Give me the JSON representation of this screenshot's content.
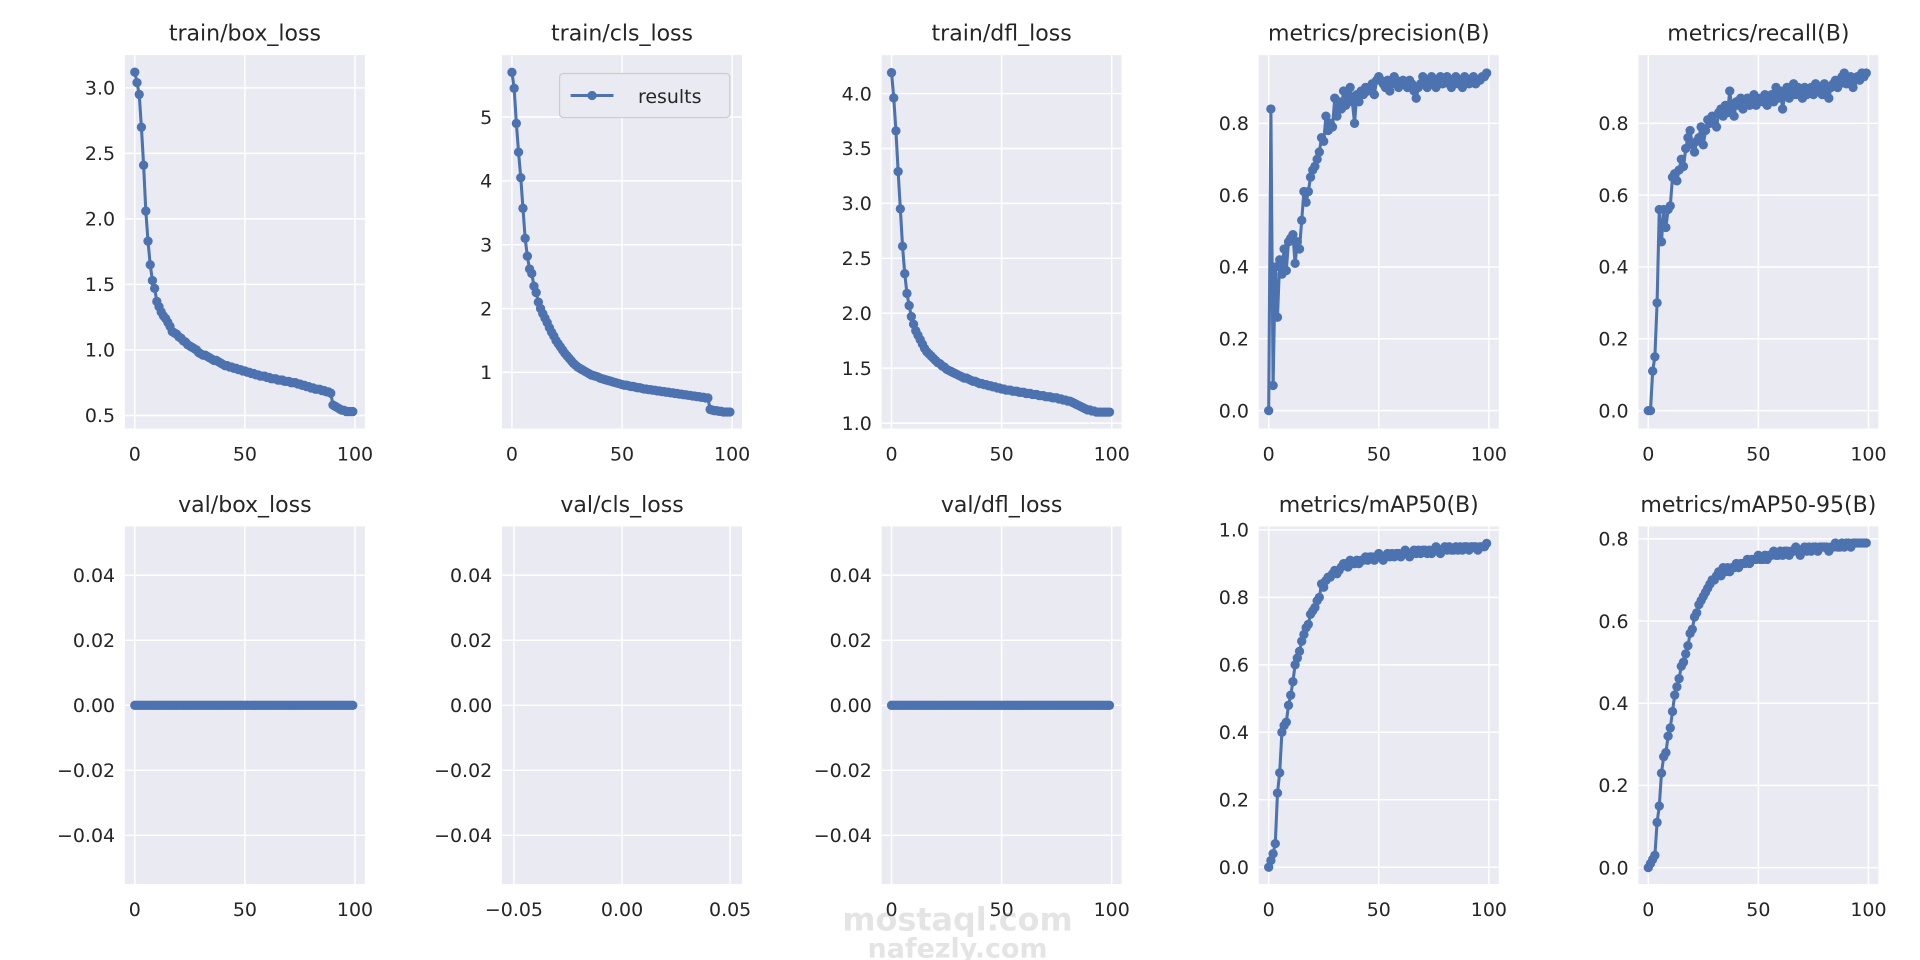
{
  "legend": {
    "label": "results"
  },
  "watermark": {
    "lines": [
      "mostaql.com",
      "nafezly.com"
    ]
  },
  "colors": {
    "series": "#4c72b0",
    "axes_bg": "#eaeaf2",
    "grid": "#ffffff",
    "text": "#262626"
  },
  "chart_data": [
    {
      "type": "line",
      "title": "train/box_loss",
      "grid": true,
      "xlim": [
        -4.5,
        104.5
      ],
      "ylim": [
        0.4,
        3.25
      ],
      "xticks": [
        0,
        50,
        100
      ],
      "xtick_labels": [
        "0",
        "50",
        "100"
      ],
      "yticks": [
        0.5,
        1.0,
        1.5,
        2.0,
        2.5,
        3.0
      ],
      "ytick_labels": [
        "0.5",
        "1.0",
        "1.5",
        "2.0",
        "2.5",
        "3.0"
      ],
      "values": [
        3.12,
        3.04,
        2.95,
        2.7,
        2.41,
        2.06,
        1.83,
        1.65,
        1.53,
        1.47,
        1.37,
        1.33,
        1.29,
        1.26,
        1.24,
        1.21,
        1.18,
        1.14,
        1.13,
        1.12,
        1.1,
        1.09,
        1.07,
        1.06,
        1.04,
        1.03,
        1.02,
        1.01,
        1.0,
        0.98,
        0.97,
        0.96,
        0.96,
        0.95,
        0.94,
        0.93,
        0.92,
        0.92,
        0.91,
        0.9,
        0.89,
        0.88,
        0.88,
        0.87,
        0.87,
        0.86,
        0.86,
        0.85,
        0.85,
        0.84,
        0.84,
        0.83,
        0.83,
        0.82,
        0.82,
        0.81,
        0.81,
        0.8,
        0.8,
        0.8,
        0.79,
        0.79,
        0.78,
        0.78,
        0.78,
        0.77,
        0.77,
        0.77,
        0.76,
        0.76,
        0.76,
        0.75,
        0.75,
        0.75,
        0.74,
        0.74,
        0.73,
        0.73,
        0.72,
        0.72,
        0.71,
        0.71,
        0.7,
        0.7,
        0.7,
        0.69,
        0.69,
        0.68,
        0.68,
        0.67,
        0.58,
        0.57,
        0.56,
        0.55,
        0.54,
        0.54,
        0.53,
        0.53,
        0.53,
        0.53
      ]
    },
    {
      "type": "line",
      "title": "train/cls_loss",
      "grid": true,
      "legend": "top-right",
      "xlim": [
        -4.5,
        104.5
      ],
      "ylim": [
        0.12,
        5.97
      ],
      "xticks": [
        0,
        50,
        100
      ],
      "xtick_labels": [
        "0",
        "50",
        "100"
      ],
      "yticks": [
        1,
        2,
        3,
        4,
        5
      ],
      "ytick_labels": [
        "1",
        "2",
        "3",
        "4",
        "5"
      ],
      "values": [
        5.7,
        5.45,
        4.9,
        4.45,
        4.05,
        3.57,
        3.1,
        2.82,
        2.62,
        2.55,
        2.35,
        2.25,
        2.1,
        2.0,
        1.92,
        1.85,
        1.78,
        1.7,
        1.63,
        1.57,
        1.5,
        1.45,
        1.4,
        1.35,
        1.3,
        1.26,
        1.22,
        1.18,
        1.14,
        1.11,
        1.08,
        1.06,
        1.04,
        1.02,
        1.0,
        0.98,
        0.96,
        0.95,
        0.94,
        0.93,
        0.91,
        0.9,
        0.89,
        0.88,
        0.87,
        0.86,
        0.85,
        0.84,
        0.83,
        0.82,
        0.81,
        0.8,
        0.8,
        0.79,
        0.78,
        0.78,
        0.77,
        0.76,
        0.76,
        0.75,
        0.74,
        0.74,
        0.73,
        0.73,
        0.72,
        0.72,
        0.71,
        0.71,
        0.7,
        0.7,
        0.69,
        0.69,
        0.68,
        0.68,
        0.67,
        0.67,
        0.66,
        0.66,
        0.65,
        0.65,
        0.64,
        0.64,
        0.63,
        0.63,
        0.62,
        0.62,
        0.61,
        0.61,
        0.6,
        0.6,
        0.42,
        0.41,
        0.4,
        0.4,
        0.39,
        0.39,
        0.38,
        0.38,
        0.38,
        0.38
      ]
    },
    {
      "type": "line",
      "title": "train/dfl_loss",
      "grid": true,
      "xlim": [
        -4.5,
        104.5
      ],
      "ylim": [
        0.95,
        4.35
      ],
      "xticks": [
        0,
        50,
        100
      ],
      "xtick_labels": [
        "0",
        "50",
        "100"
      ],
      "yticks": [
        1.0,
        1.5,
        2.0,
        2.5,
        3.0,
        3.5,
        4.0
      ],
      "ytick_labels": [
        "1.0",
        "1.5",
        "2.0",
        "2.5",
        "3.0",
        "3.5",
        "4.0"
      ],
      "values": [
        4.19,
        3.96,
        3.66,
        3.29,
        2.95,
        2.61,
        2.36,
        2.18,
        2.07,
        1.97,
        1.9,
        1.84,
        1.8,
        1.76,
        1.72,
        1.68,
        1.65,
        1.63,
        1.61,
        1.59,
        1.57,
        1.55,
        1.54,
        1.52,
        1.51,
        1.49,
        1.48,
        1.47,
        1.46,
        1.45,
        1.44,
        1.43,
        1.42,
        1.41,
        1.41,
        1.4,
        1.39,
        1.38,
        1.38,
        1.37,
        1.36,
        1.36,
        1.35,
        1.35,
        1.34,
        1.34,
        1.33,
        1.33,
        1.32,
        1.32,
        1.31,
        1.31,
        1.3,
        1.3,
        1.3,
        1.29,
        1.29,
        1.29,
        1.28,
        1.28,
        1.28,
        1.27,
        1.27,
        1.27,
        1.26,
        1.26,
        1.26,
        1.25,
        1.25,
        1.25,
        1.24,
        1.24,
        1.24,
        1.23,
        1.23,
        1.23,
        1.22,
        1.22,
        1.21,
        1.21,
        1.2,
        1.2,
        1.19,
        1.18,
        1.17,
        1.16,
        1.15,
        1.14,
        1.13,
        1.12,
        1.12,
        1.11,
        1.11,
        1.1,
        1.1,
        1.1,
        1.1,
        1.1,
        1.1,
        1.1
      ]
    },
    {
      "type": "line",
      "title": "metrics/precision(B)",
      "grid": true,
      "xlim": [
        -4.5,
        104.5
      ],
      "ylim": [
        -0.05,
        0.99
      ],
      "xticks": [
        0,
        50,
        100
      ],
      "xtick_labels": [
        "0",
        "50",
        "100"
      ],
      "yticks": [
        0.0,
        0.2,
        0.4,
        0.6,
        0.8
      ],
      "ytick_labels": [
        "0.0",
        "0.2",
        "0.4",
        "0.6",
        "0.8"
      ],
      "values": [
        0.0,
        0.84,
        0.07,
        0.4,
        0.26,
        0.42,
        0.38,
        0.45,
        0.39,
        0.47,
        0.48,
        0.49,
        0.41,
        0.47,
        0.45,
        0.53,
        0.61,
        0.58,
        0.61,
        0.65,
        0.67,
        0.68,
        0.7,
        0.72,
        0.76,
        0.75,
        0.82,
        0.78,
        0.8,
        0.79,
        0.87,
        0.82,
        0.86,
        0.84,
        0.89,
        0.85,
        0.88,
        0.9,
        0.86,
        0.8,
        0.88,
        0.86,
        0.89,
        0.88,
        0.9,
        0.89,
        0.9,
        0.91,
        0.88,
        0.92,
        0.93,
        0.92,
        0.91,
        0.9,
        0.92,
        0.89,
        0.91,
        0.93,
        0.92,
        0.9,
        0.91,
        0.92,
        0.91,
        0.9,
        0.92,
        0.91,
        0.89,
        0.87,
        0.9,
        0.91,
        0.93,
        0.92,
        0.9,
        0.91,
        0.93,
        0.92,
        0.9,
        0.92,
        0.93,
        0.91,
        0.92,
        0.93,
        0.91,
        0.9,
        0.92,
        0.93,
        0.91,
        0.92,
        0.9,
        0.93,
        0.92,
        0.91,
        0.92,
        0.93,
        0.91,
        0.92,
        0.92,
        0.93,
        0.93,
        0.94
      ]
    },
    {
      "type": "line",
      "title": "metrics/recall(B)",
      "grid": true,
      "xlim": [
        -4.5,
        104.5
      ],
      "ylim": [
        -0.05,
        0.99
      ],
      "xticks": [
        0,
        50,
        100
      ],
      "xtick_labels": [
        "0",
        "50",
        "100"
      ],
      "yticks": [
        0.0,
        0.2,
        0.4,
        0.6,
        0.8
      ],
      "ytick_labels": [
        "0.0",
        "0.2",
        "0.4",
        "0.6",
        "0.8"
      ],
      "values": [
        0.0,
        0.0,
        0.11,
        0.15,
        0.3,
        0.56,
        0.47,
        0.56,
        0.51,
        0.56,
        0.57,
        0.65,
        0.66,
        0.64,
        0.67,
        0.7,
        0.68,
        0.73,
        0.76,
        0.78,
        0.74,
        0.72,
        0.75,
        0.76,
        0.79,
        0.74,
        0.78,
        0.81,
        0.8,
        0.82,
        0.8,
        0.79,
        0.83,
        0.84,
        0.82,
        0.85,
        0.83,
        0.89,
        0.84,
        0.82,
        0.86,
        0.85,
        0.87,
        0.84,
        0.86,
        0.87,
        0.85,
        0.86,
        0.88,
        0.85,
        0.86,
        0.87,
        0.86,
        0.88,
        0.85,
        0.87,
        0.88,
        0.86,
        0.9,
        0.87,
        0.89,
        0.84,
        0.88,
        0.9,
        0.87,
        0.89,
        0.91,
        0.88,
        0.9,
        0.89,
        0.87,
        0.9,
        0.88,
        0.89,
        0.9,
        0.88,
        0.91,
        0.89,
        0.9,
        0.88,
        0.91,
        0.89,
        0.87,
        0.9,
        0.91,
        0.92,
        0.9,
        0.91,
        0.93,
        0.94,
        0.91,
        0.92,
        0.93,
        0.9,
        0.92,
        0.93,
        0.92,
        0.94,
        0.93,
        0.94
      ]
    },
    {
      "type": "line",
      "title": "val/box_loss",
      "grid": true,
      "xlim": [
        -4.5,
        104.5
      ],
      "ylim": [
        -0.055,
        0.055
      ],
      "xticks": [
        0,
        50,
        100
      ],
      "xtick_labels": [
        "0",
        "50",
        "100"
      ],
      "yticks": [
        -0.04,
        -0.02,
        0.0,
        0.02,
        0.04
      ],
      "ytick_labels": [
        "−0.04",
        "−0.02",
        "0.00",
        "0.02",
        "0.04"
      ],
      "values": [
        0,
        0,
        0,
        0,
        0,
        0,
        0,
        0,
        0,
        0,
        0,
        0,
        0,
        0,
        0,
        0,
        0,
        0,
        0,
        0,
        0,
        0,
        0,
        0,
        0,
        0,
        0,
        0,
        0,
        0,
        0,
        0,
        0,
        0,
        0,
        0,
        0,
        0,
        0,
        0,
        0,
        0,
        0,
        0,
        0,
        0,
        0,
        0,
        0,
        0,
        0,
        0,
        0,
        0,
        0,
        0,
        0,
        0,
        0,
        0,
        0,
        0,
        0,
        0,
        0,
        0,
        0,
        0,
        0,
        0,
        0,
        0,
        0,
        0,
        0,
        0,
        0,
        0,
        0,
        0,
        0,
        0,
        0,
        0,
        0,
        0,
        0,
        0,
        0,
        0,
        0,
        0,
        0,
        0,
        0,
        0,
        0,
        0,
        0,
        0
      ]
    },
    {
      "type": "line",
      "title": "val/cls_loss",
      "grid": true,
      "xlim": [
        -0.0555,
        0.0555
      ],
      "ylim": [
        -0.055,
        0.055
      ],
      "xticks": [
        -0.05,
        0.0,
        0.05
      ],
      "xtick_labels": [
        "−0.05",
        "0.00",
        "0.05"
      ],
      "yticks": [
        -0.04,
        -0.02,
        0.0,
        0.02,
        0.04
      ],
      "ytick_labels": [
        "−0.04",
        "−0.02",
        "0.00",
        "0.02",
        "0.04"
      ],
      "values": []
    },
    {
      "type": "line",
      "title": "val/dfl_loss",
      "grid": true,
      "xlim": [
        -4.5,
        104.5
      ],
      "ylim": [
        -0.055,
        0.055
      ],
      "xticks": [
        0,
        50,
        100
      ],
      "xtick_labels": [
        "0",
        "50",
        "100"
      ],
      "yticks": [
        -0.04,
        -0.02,
        0.0,
        0.02,
        0.04
      ],
      "ytick_labels": [
        "−0.04",
        "−0.02",
        "0.00",
        "0.02",
        "0.04"
      ],
      "values": [
        0,
        0,
        0,
        0,
        0,
        0,
        0,
        0,
        0,
        0,
        0,
        0,
        0,
        0,
        0,
        0,
        0,
        0,
        0,
        0,
        0,
        0,
        0,
        0,
        0,
        0,
        0,
        0,
        0,
        0,
        0,
        0,
        0,
        0,
        0,
        0,
        0,
        0,
        0,
        0,
        0,
        0,
        0,
        0,
        0,
        0,
        0,
        0,
        0,
        0,
        0,
        0,
        0,
        0,
        0,
        0,
        0,
        0,
        0,
        0,
        0,
        0,
        0,
        0,
        0,
        0,
        0,
        0,
        0,
        0,
        0,
        0,
        0,
        0,
        0,
        0,
        0,
        0,
        0,
        0,
        0,
        0,
        0,
        0,
        0,
        0,
        0,
        0,
        0,
        0,
        0,
        0,
        0,
        0,
        0,
        0,
        0,
        0,
        0,
        0
      ]
    },
    {
      "type": "line",
      "title": "metrics/mAP50(B)",
      "grid": true,
      "xlim": [
        -4.5,
        104.5
      ],
      "ylim": [
        -0.05,
        1.01
      ],
      "xticks": [
        0,
        50,
        100
      ],
      "xtick_labels": [
        "0",
        "50",
        "100"
      ],
      "yticks": [
        0.0,
        0.2,
        0.4,
        0.6,
        0.8,
        1.0
      ],
      "ytick_labels": [
        "0.0",
        "0.2",
        "0.4",
        "0.6",
        "0.8",
        "1.0"
      ],
      "values": [
        0.0,
        0.02,
        0.04,
        0.07,
        0.22,
        0.28,
        0.4,
        0.42,
        0.43,
        0.48,
        0.51,
        0.55,
        0.6,
        0.62,
        0.64,
        0.67,
        0.69,
        0.71,
        0.72,
        0.75,
        0.76,
        0.77,
        0.79,
        0.8,
        0.84,
        0.83,
        0.85,
        0.86,
        0.86,
        0.87,
        0.88,
        0.87,
        0.88,
        0.89,
        0.9,
        0.9,
        0.89,
        0.91,
        0.9,
        0.9,
        0.91,
        0.9,
        0.91,
        0.91,
        0.92,
        0.91,
        0.92,
        0.92,
        0.91,
        0.92,
        0.93,
        0.92,
        0.91,
        0.92,
        0.93,
        0.92,
        0.93,
        0.92,
        0.93,
        0.93,
        0.92,
        0.93,
        0.94,
        0.93,
        0.92,
        0.93,
        0.94,
        0.93,
        0.94,
        0.93,
        0.94,
        0.94,
        0.93,
        0.94,
        0.93,
        0.94,
        0.95,
        0.94,
        0.93,
        0.94,
        0.95,
        0.94,
        0.95,
        0.94,
        0.94,
        0.95,
        0.94,
        0.95,
        0.94,
        0.95,
        0.95,
        0.94,
        0.95,
        0.95,
        0.95,
        0.94,
        0.95,
        0.95,
        0.95,
        0.96
      ]
    },
    {
      "type": "line",
      "title": "metrics/mAP50-95(B)",
      "grid": true,
      "xlim": [
        -4.5,
        104.5
      ],
      "ylim": [
        -0.04,
        0.83
      ],
      "xticks": [
        0,
        50,
        100
      ],
      "xtick_labels": [
        "0",
        "50",
        "100"
      ],
      "yticks": [
        0.0,
        0.2,
        0.4,
        0.6,
        0.8
      ],
      "ytick_labels": [
        "0.0",
        "0.2",
        "0.4",
        "0.6",
        "0.8"
      ],
      "values": [
        0.0,
        0.01,
        0.02,
        0.03,
        0.11,
        0.15,
        0.23,
        0.27,
        0.28,
        0.32,
        0.34,
        0.38,
        0.42,
        0.44,
        0.46,
        0.49,
        0.5,
        0.52,
        0.54,
        0.57,
        0.58,
        0.61,
        0.62,
        0.64,
        0.65,
        0.66,
        0.67,
        0.68,
        0.69,
        0.7,
        0.7,
        0.71,
        0.72,
        0.71,
        0.73,
        0.72,
        0.73,
        0.72,
        0.73,
        0.73,
        0.74,
        0.73,
        0.74,
        0.74,
        0.74,
        0.75,
        0.74,
        0.75,
        0.75,
        0.75,
        0.76,
        0.75,
        0.75,
        0.76,
        0.75,
        0.76,
        0.76,
        0.77,
        0.76,
        0.76,
        0.77,
        0.76,
        0.77,
        0.77,
        0.76,
        0.77,
        0.77,
        0.78,
        0.77,
        0.76,
        0.77,
        0.78,
        0.77,
        0.78,
        0.77,
        0.78,
        0.78,
        0.77,
        0.78,
        0.78,
        0.78,
        0.78,
        0.77,
        0.78,
        0.78,
        0.79,
        0.78,
        0.78,
        0.79,
        0.78,
        0.79,
        0.79,
        0.78,
        0.79,
        0.79,
        0.79,
        0.79,
        0.79,
        0.79,
        0.79
      ]
    }
  ]
}
